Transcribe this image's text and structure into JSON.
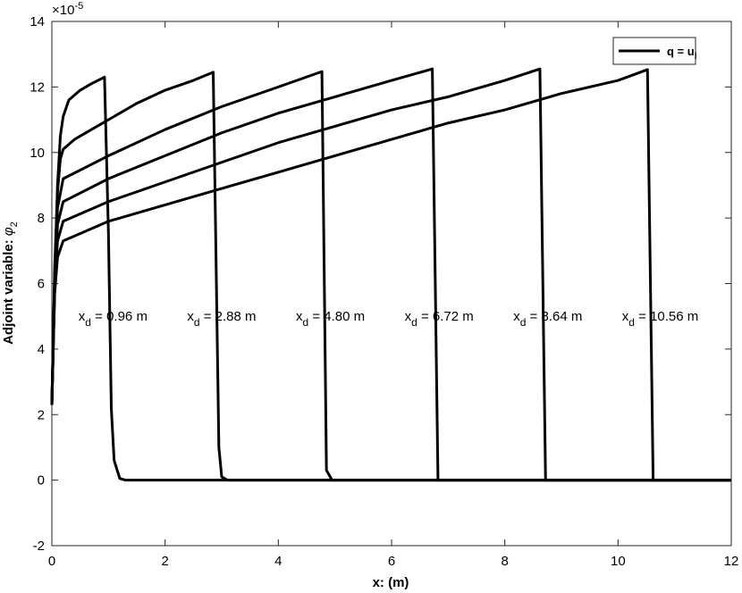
{
  "chart_data": {
    "type": "line",
    "xlabel": "x: (m)",
    "ylabel": {
      "text": "Adjoint variable: ",
      "symbol": "φ",
      "subscript": "2"
    },
    "y_multiplier": {
      "base": "×10",
      "exponent": "-5"
    },
    "legend": {
      "label": "q = u",
      "subscript": "l",
      "corner": "upper right"
    },
    "color": "#000000",
    "xlim": [
      0,
      12
    ],
    "xticks": [
      0,
      2,
      4,
      6,
      8,
      10,
      12
    ],
    "ylim": [
      -2,
      14
    ],
    "yticks": [
      -2,
      0,
      2,
      4,
      6,
      8,
      10,
      12,
      14
    ],
    "series": [
      {
        "x": [
          0,
          0.05,
          0.1,
          0.15,
          0.2,
          0.3,
          0.5,
          0.7,
          0.93,
          1.0,
          1.05,
          1.1,
          1.2,
          1.3,
          12
        ],
        "values": [
          2.3,
          6,
          9,
          10.5,
          11.1,
          11.6,
          11.9,
          12.1,
          12.3,
          7.5,
          2.2,
          0.6,
          0.05,
          0,
          0
        ]
      },
      {
        "x": [
          0,
          0.05,
          0.1,
          0.15,
          0.2,
          0.4,
          1,
          1.5,
          2,
          2.5,
          2.85,
          2.95,
          3.0,
          3.1,
          12
        ],
        "values": [
          2.3,
          6.5,
          8.8,
          9.8,
          10.1,
          10.4,
          11.0,
          11.5,
          11.9,
          12.2,
          12.45,
          1.0,
          0.1,
          0,
          0
        ]
      },
      {
        "x": [
          0,
          0.05,
          0.1,
          0.2,
          1,
          2,
          3,
          4,
          4.77,
          4.85,
          4.95,
          12
        ],
        "values": [
          2.3,
          6.3,
          8.3,
          9.2,
          9.9,
          10.7,
          11.4,
          12.0,
          12.47,
          0.3,
          0,
          0
        ]
      },
      {
        "x": [
          0,
          0.05,
          0.1,
          0.2,
          1,
          2,
          3,
          4,
          5,
          6,
          6.72,
          6.82,
          12
        ],
        "values": [
          2.3,
          6.1,
          7.8,
          8.5,
          9.2,
          9.9,
          10.6,
          11.2,
          11.7,
          12.2,
          12.55,
          0,
          0
        ]
      },
      {
        "x": [
          0,
          0.05,
          0.1,
          0.2,
          1,
          2,
          3,
          4,
          5,
          6,
          7,
          8,
          8.62,
          8.72,
          12
        ],
        "values": [
          2.3,
          5.9,
          7.3,
          7.9,
          8.5,
          9.1,
          9.7,
          10.3,
          10.8,
          11.3,
          11.7,
          12.2,
          12.55,
          0,
          0
        ]
      },
      {
        "x": [
          0,
          0.05,
          0.1,
          0.2,
          1,
          2,
          3,
          4,
          5,
          6,
          7,
          8,
          9,
          10,
          10.52,
          10.62,
          12
        ],
        "values": [
          2.3,
          5.7,
          6.8,
          7.3,
          7.9,
          8.4,
          8.9,
          9.4,
          9.9,
          10.4,
          10.9,
          11.3,
          11.8,
          12.2,
          12.53,
          0,
          0
        ]
      }
    ],
    "annotations": [
      {
        "text": "x",
        "subscript": "d",
        "rest": " = 0.96 m"
      },
      {
        "text": "x",
        "subscript": "d",
        "rest": " = 2.88 m"
      },
      {
        "text": "x",
        "subscript": "d",
        "rest": " = 4.80 m"
      },
      {
        "text": "x",
        "subscript": "d",
        "rest": " = 6.72 m"
      },
      {
        "text": "x",
        "subscript": "d",
        "rest": " = 8.64 m"
      },
      {
        "text": "x",
        "subscript": "d",
        "rest": " = 10.56 m"
      }
    ],
    "annotation_x": [
      0.96,
      2.88,
      4.8,
      6.72,
      8.64,
      10.56
    ],
    "annotation_y": 5
  }
}
